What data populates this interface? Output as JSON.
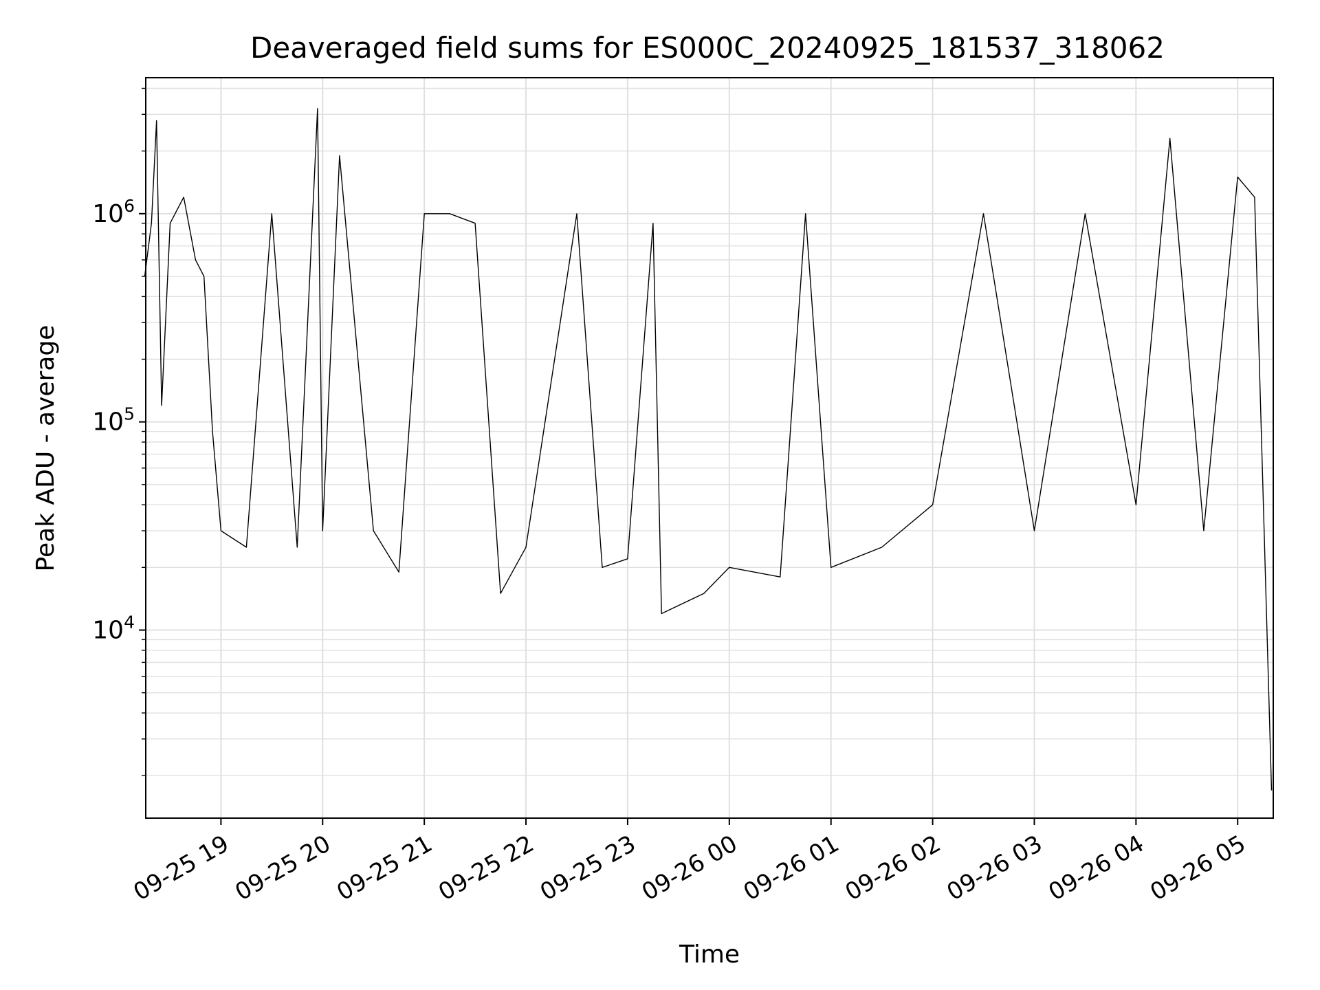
{
  "chart_data": {
    "type": "line",
    "title": "Deaveraged field sums for ES000C_20240925_181537_318062",
    "xlabel": "Time",
    "ylabel": "Peak ADU - average",
    "y_scale": "log",
    "ylim": [
      1250,
      4500000
    ],
    "xlim": [
      "2024-09-25 18:15:37",
      "2024-09-26 05:21:00"
    ],
    "grid": true,
    "grid_color": "#e0e0e0",
    "line_color": "#000000",
    "x_ticks": [
      {
        "t": "2024-09-25 19:00",
        "label": "09-25 19"
      },
      {
        "t": "2024-09-25 20:00",
        "label": "09-25 20"
      },
      {
        "t": "2024-09-25 21:00",
        "label": "09-25 21"
      },
      {
        "t": "2024-09-25 22:00",
        "label": "09-25 22"
      },
      {
        "t": "2024-09-25 23:00",
        "label": "09-25 23"
      },
      {
        "t": "2024-09-26 00:00",
        "label": "09-26 00"
      },
      {
        "t": "2024-09-26 01:00",
        "label": "09-26 01"
      },
      {
        "t": "2024-09-26 02:00",
        "label": "09-26 02"
      },
      {
        "t": "2024-09-26 03:00",
        "label": "09-26 03"
      },
      {
        "t": "2024-09-26 04:00",
        "label": "09-26 04"
      },
      {
        "t": "2024-09-26 05:00",
        "label": "09-26 05"
      }
    ],
    "y_ticks": [
      {
        "value": 10000,
        "base": "10",
        "exp": "4"
      },
      {
        "value": 100000,
        "base": "10",
        "exp": "5"
      },
      {
        "value": 1000000,
        "base": "10",
        "exp": "6"
      }
    ],
    "series": [
      {
        "points": [
          [
            "2024-09-25 18:15",
            500000
          ],
          [
            "2024-09-25 18:19",
            900000
          ],
          [
            "2024-09-25 18:22",
            2800000
          ],
          [
            "2024-09-25 18:25",
            120000
          ],
          [
            "2024-09-25 18:30",
            900000
          ],
          [
            "2024-09-25 18:38",
            1200000
          ],
          [
            "2024-09-25 18:45",
            600000
          ],
          [
            "2024-09-25 18:50",
            500000
          ],
          [
            "2024-09-25 18:55",
            90000
          ],
          [
            "2024-09-25 19:00",
            30000
          ],
          [
            "2024-09-25 19:15",
            25000
          ],
          [
            "2024-09-25 19:30",
            1000000
          ],
          [
            "2024-09-25 19:45",
            25000
          ],
          [
            "2024-09-25 19:57",
            3200000
          ],
          [
            "2024-09-25 20:00",
            30000
          ],
          [
            "2024-09-25 20:10",
            1900000
          ],
          [
            "2024-09-25 20:30",
            30000
          ],
          [
            "2024-09-25 20:45",
            19000
          ],
          [
            "2024-09-25 21:00",
            1000000
          ],
          [
            "2024-09-25 21:15",
            1000000
          ],
          [
            "2024-09-25 21:30",
            900000
          ],
          [
            "2024-09-25 21:45",
            15000
          ],
          [
            "2024-09-25 22:00",
            25000
          ],
          [
            "2024-09-25 22:30",
            1000000
          ],
          [
            "2024-09-25 22:45",
            20000
          ],
          [
            "2024-09-25 23:00",
            22000
          ],
          [
            "2024-09-25 23:15",
            900000
          ],
          [
            "2024-09-25 23:20",
            12000
          ],
          [
            "2024-09-25 23:45",
            15000
          ],
          [
            "2024-09-26 00:00",
            20000
          ],
          [
            "2024-09-26 00:30",
            18000
          ],
          [
            "2024-09-26 00:45",
            1000000
          ],
          [
            "2024-09-26 01:00",
            20000
          ],
          [
            "2024-09-26 01:30",
            25000
          ],
          [
            "2024-09-26 02:00",
            40000
          ],
          [
            "2024-09-26 02:30",
            1000000
          ],
          [
            "2024-09-26 03:00",
            30000
          ],
          [
            "2024-09-26 03:30",
            1000000
          ],
          [
            "2024-09-26 04:00",
            40000
          ],
          [
            "2024-09-26 04:20",
            2300000
          ],
          [
            "2024-09-26 04:40",
            30000
          ],
          [
            "2024-09-26 05:00",
            1500000
          ],
          [
            "2024-09-26 05:10",
            1200000
          ],
          [
            "2024-09-26 05:20",
            1700
          ]
        ]
      }
    ]
  }
}
